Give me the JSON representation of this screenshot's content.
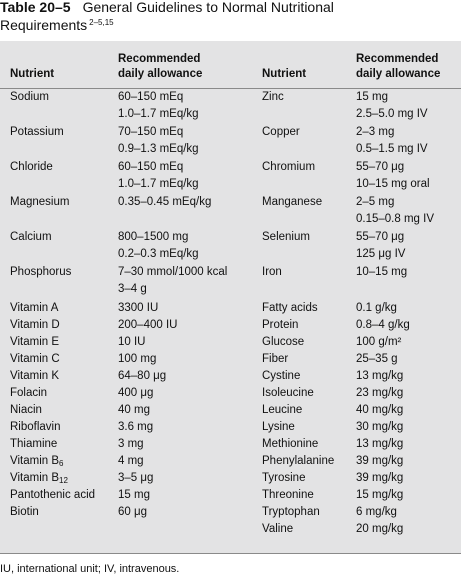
{
  "title": {
    "number": "Table 20–5",
    "line1": "General Guidelines to Normal Nutritional",
    "line2": "Requirements",
    "refs": "2–5,15"
  },
  "headers": {
    "nutrient": "Nutrient",
    "rda_line1": "Recommended",
    "rda_line2": "daily allowance"
  },
  "left_rows": [
    {
      "nutrient": "Sodium",
      "values": [
        "60–150 mEq",
        "1.0–1.7 mEq/kg"
      ]
    },
    {
      "nutrient": "Potassium",
      "values": [
        "70–150 mEq",
        "0.9–1.3 mEq/kg"
      ]
    },
    {
      "nutrient": "Chloride",
      "values": [
        "60–150 mEq",
        "1.0–1.7 mEq/kg"
      ]
    },
    {
      "nutrient": "Magnesium",
      "values": [
        "0.35–0.45 mEq/kg"
      ]
    },
    {
      "nutrient": "Calcium",
      "values": [
        "800–1500 mg",
        "0.2–0.3 mEq/kg"
      ]
    },
    {
      "nutrient": "Phosphorus",
      "values": [
        "7–30 mmol/1000 kcal",
        "3–4 g"
      ]
    },
    {
      "nutrient": "Vitamin A",
      "values": [
        "3300 IU"
      ]
    },
    {
      "nutrient": "Vitamin D",
      "values": [
        "200–400 IU"
      ]
    },
    {
      "nutrient": "Vitamin E",
      "values": [
        "10 IU"
      ]
    },
    {
      "nutrient": "Vitamin C",
      "values": [
        "100 mg"
      ]
    },
    {
      "nutrient": "Vitamin K",
      "values": [
        "64–80 μg"
      ]
    },
    {
      "nutrient": "Folacin",
      "values": [
        "400 μg"
      ]
    },
    {
      "nutrient": "Niacin",
      "values": [
        "40 mg"
      ]
    },
    {
      "nutrient": "Riboflavin",
      "values": [
        "3.6 mg"
      ]
    },
    {
      "nutrient": "Thiamine",
      "values": [
        "3 mg"
      ]
    },
    {
      "nutrient": "Vitamin B",
      "sub": "6",
      "values": [
        "4 mg"
      ]
    },
    {
      "nutrient": "Vitamin B",
      "sub": "12",
      "values": [
        "3–5 μg"
      ]
    },
    {
      "nutrient": "Pantothenic acid",
      "values": [
        "15 mg"
      ]
    },
    {
      "nutrient": "Biotin",
      "values": [
        "60 μg"
      ]
    }
  ],
  "right_rows": [
    {
      "nutrient": "Zinc",
      "values": [
        "15 mg",
        "2.5–5.0 mg IV"
      ]
    },
    {
      "nutrient": "Copper",
      "values": [
        "2–3 mg",
        "0.5–1.5 mg IV"
      ]
    },
    {
      "nutrient": "Chromium",
      "values": [
        "55–70 μg",
        "10–15 mg oral"
      ]
    },
    {
      "nutrient": "Manganese",
      "values": [
        "2–5 mg",
        "0.15–0.8 mg IV"
      ]
    },
    {
      "nutrient": "Selenium",
      "values": [
        "55–70 μg",
        "125 μg IV"
      ]
    },
    {
      "nutrient": "Iron",
      "values": [
        "10–15 mg"
      ]
    },
    {
      "nutrient": "Fatty acids",
      "values": [
        "0.1 g/kg"
      ]
    },
    {
      "nutrient": "Protein",
      "values": [
        "0.8–4 g/kg"
      ]
    },
    {
      "nutrient": "Glucose",
      "values": [
        "100 g/m²"
      ]
    },
    {
      "nutrient": "Fiber",
      "values": [
        "25–35 g"
      ]
    },
    {
      "nutrient": "Cystine",
      "values": [
        "13 mg/kg"
      ]
    },
    {
      "nutrient": "Isoleucine",
      "values": [
        "23 mg/kg"
      ]
    },
    {
      "nutrient": "Leucine",
      "values": [
        "40 mg/kg"
      ]
    },
    {
      "nutrient": "Lysine",
      "values": [
        "30 mg/kg"
      ]
    },
    {
      "nutrient": "Methionine",
      "values": [
        "13 mg/kg"
      ]
    },
    {
      "nutrient": "Phenylalanine",
      "values": [
        "39 mg/kg"
      ]
    },
    {
      "nutrient": "Tyrosine",
      "values": [
        "39 mg/kg"
      ]
    },
    {
      "nutrient": "Threonine",
      "values": [
        "15 mg/kg"
      ]
    },
    {
      "nutrient": "Tryptophan",
      "values": [
        "6 mg/kg"
      ]
    },
    {
      "nutrient": "Valine",
      "values": [
        "20 mg/kg"
      ]
    }
  ],
  "footnote": "IU, international unit; IV, intravenous."
}
